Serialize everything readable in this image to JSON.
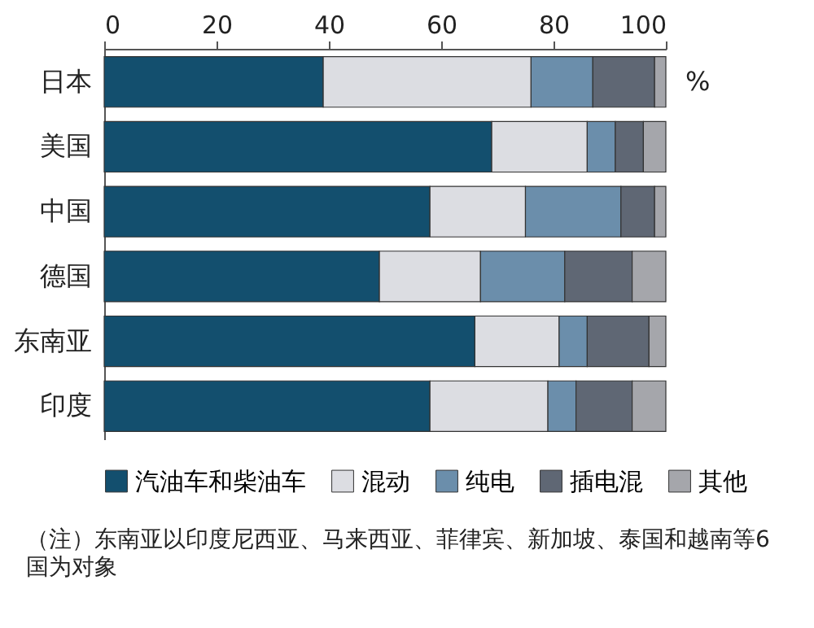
{
  "chart_data": {
    "type": "bar",
    "orientation": "horizontal",
    "stacked": true,
    "categories": [
      "日本",
      "美国",
      "中国",
      "德国",
      "东南亚",
      "印度"
    ],
    "series": [
      {
        "name": "汽油车和柴油车",
        "color": "#134f6e",
        "values": [
          39,
          69,
          58,
          49,
          66,
          58
        ]
      },
      {
        "name": "混动",
        "color": "#dcdde2",
        "values": [
          37,
          17,
          17,
          18,
          15,
          21
        ]
      },
      {
        "name": "纯电",
        "color": "#6b8eab",
        "values": [
          11,
          5,
          17,
          15,
          5,
          5
        ]
      },
      {
        "name": "插电混",
        "color": "#5f6774",
        "values": [
          11,
          5,
          6,
          12,
          11,
          10
        ]
      },
      {
        "name": "其他",
        "color": "#a5a6ab",
        "values": [
          2,
          4,
          2,
          6,
          3,
          6
        ]
      }
    ],
    "xlim": [
      0,
      100
    ],
    "xticks": [
      0,
      20,
      40,
      60,
      80,
      100
    ],
    "grid": false,
    "legend": "bottom",
    "annotations": [
      "%",
      "（注）东南亚以印度尼西亚、马来西亚、菲律宾、新加坡、泰国和越南等6国为对象"
    ]
  }
}
